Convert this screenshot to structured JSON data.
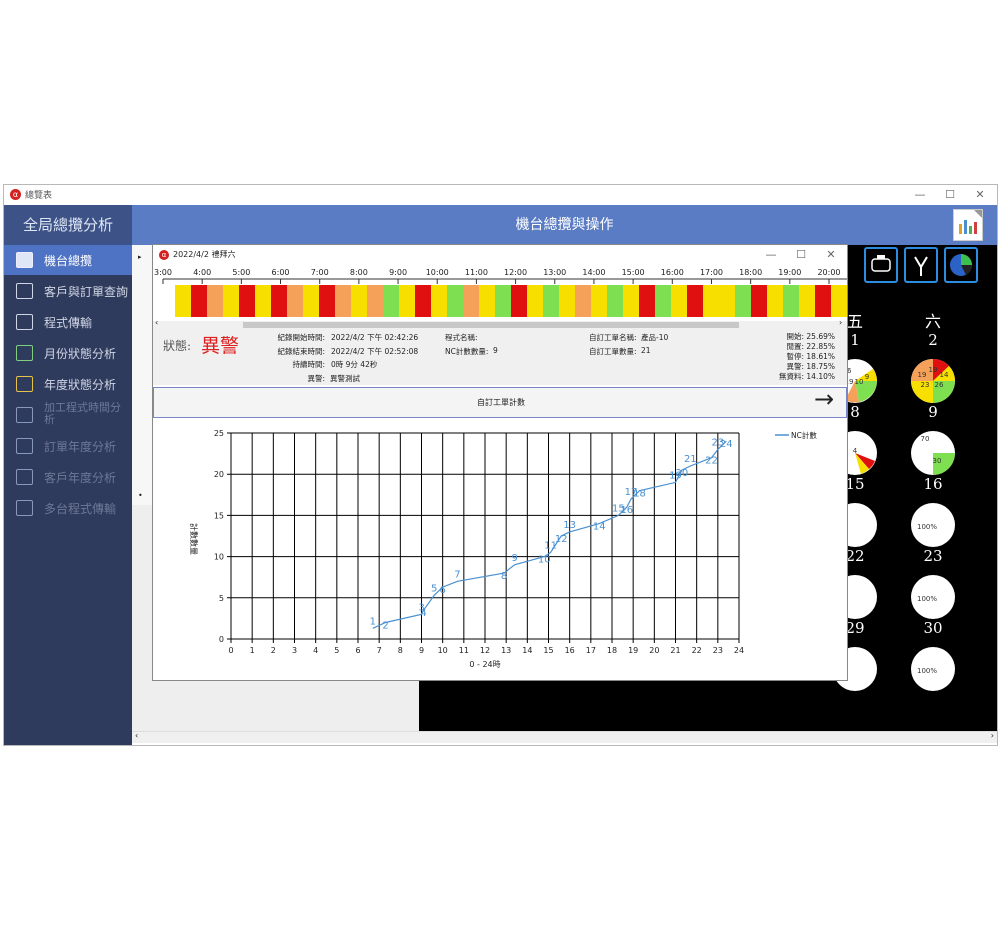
{
  "app": {
    "title": "總覽表",
    "min": "—",
    "max": "☐",
    "close": "✕"
  },
  "sidebar": {
    "header": "全局總攬分析",
    "items": [
      {
        "label": "機台總攬",
        "icon": "machine-overview-icon",
        "state": "active"
      },
      {
        "label": "客戶與訂單查詢",
        "icon": "order-search-icon",
        "state": "normal"
      },
      {
        "label": "程式傳輸",
        "icon": "program-transfer-icon",
        "state": "normal"
      },
      {
        "label": "月份狀態分析",
        "icon": "monthly-chart-icon",
        "state": "normal"
      },
      {
        "label": "年度狀態分析",
        "icon": "yearly-chart-icon",
        "state": "normal"
      },
      {
        "label": "加工程式時間分析",
        "icon": "program-time-icon",
        "state": "dim"
      },
      {
        "label": "訂單年度分析",
        "icon": "order-year-icon",
        "state": "dim"
      },
      {
        "label": "客戶年度分析",
        "icon": "customer-year-icon",
        "state": "dim"
      },
      {
        "label": "多台程式傳輸",
        "icon": "multi-transfer-icon",
        "state": "dim"
      }
    ]
  },
  "main_header": "機台總攬與操作",
  "calendar": {
    "day_headers": [
      "五",
      "六"
    ],
    "cells": [
      {
        "day": "1",
        "labels": [
          "46",
          "9",
          "19",
          "10"
        ]
      },
      {
        "day": "2",
        "labels": [
          "19",
          "19",
          "14",
          "23",
          "26"
        ]
      },
      {
        "day": "8",
        "labels": [
          "4"
        ]
      },
      {
        "day": "9",
        "labels": [
          "70",
          "30"
        ]
      },
      {
        "day": "15",
        "labels": []
      },
      {
        "day": "16",
        "labels": [
          "100%"
        ]
      },
      {
        "day": "22",
        "labels": []
      },
      {
        "day": "23",
        "labels": [
          "100%"
        ]
      },
      {
        "day": "29",
        "labels": []
      },
      {
        "day": "30",
        "labels": [
          "100%"
        ]
      }
    ],
    "colors": {
      "yellow": "#f7e000",
      "orange": "#f6a15a",
      "red": "#e01010",
      "green": "#7ee050"
    }
  },
  "popup": {
    "title": "2022/4/2  禮拜六",
    "timeline_hours": [
      "3:00",
      "4:00",
      "5:00",
      "6:00",
      "7:00",
      "8:00",
      "9:00",
      "10:00",
      "11:00",
      "12:00",
      "13:00",
      "14:00",
      "15:00",
      "16:00",
      "17:00",
      "18:00",
      "19:00",
      "20:00"
    ],
    "timeline_segments": [
      "#f7e000",
      "#e01010",
      "#f6a15a",
      "#f7e000",
      "#e01010",
      "#f7e000",
      "#e01010",
      "#f6a15a",
      "#f7e000",
      "#e01010",
      "#f6a15a",
      "#f7e000",
      "#f6a15a",
      "#7ee050",
      "#f7e000",
      "#e01010",
      "#f7e000",
      "#7ee050",
      "#f6a15a",
      "#f7e000",
      "#7ee050",
      "#e01010",
      "#f7e000",
      "#7ee050",
      "#f7e000",
      "#f6a15a",
      "#f7e000",
      "#7ee050",
      "#f7e000",
      "#e01010",
      "#7ee050",
      "#f7e000",
      "#e01010",
      "#f7e000",
      "#f7e000",
      "#7ee050",
      "#e01010",
      "#f7e000",
      "#7ee050",
      "#f7e000",
      "#e01010",
      "#f7e000"
    ],
    "status_label": "狀態:",
    "status_value": "異警",
    "info": {
      "start_label": "紀錄開始時間:",
      "start_value": "2022/4/2 下午 02:42:26",
      "end_label": "紀錄結束時間:",
      "end_value": "2022/4/2 下午 02:52:08",
      "duration_label": "持續時間:",
      "duration_value": "0時 9分 42秒",
      "alarm_label": "異警:",
      "alarm_value": "異警測試",
      "program_label": "程式名稱:",
      "program_value": "",
      "nc_label": "NC計數數量:",
      "nc_value": "9",
      "wo_label": "自訂工單名稱:",
      "wo_value": "產品-10",
      "wo_count_label": "自訂工單數量:",
      "wo_count_value": "21",
      "pct": [
        "開始: 25.69%",
        "閒置: 22.85%",
        "暫停: 18.61%",
        "異警: 18.75%",
        "無資料: 14.10%"
      ]
    },
    "section_title": "自訂工單計數",
    "arrow": "→"
  },
  "chart_data": {
    "type": "line",
    "xlabel": "0 - 24時",
    "ylabel": "計數數量",
    "xlim": [
      0,
      24
    ],
    "ylim": [
      0,
      25
    ],
    "xticks": [
      0,
      1,
      2,
      3,
      4,
      5,
      6,
      7,
      8,
      9,
      10,
      11,
      12,
      13,
      14,
      15,
      16,
      17,
      18,
      19,
      20,
      21,
      22,
      23,
      24
    ],
    "yticks": [
      0,
      5,
      10,
      15,
      20,
      25
    ],
    "grid": true,
    "legend": "top-right",
    "series": [
      {
        "name": "NC計數",
        "color": "#4a90d0",
        "points": [
          {
            "x": 6.7,
            "y": 1.3,
            "label": "1"
          },
          {
            "x": 7.3,
            "y": 2.0,
            "label": "2"
          },
          {
            "x": 9.0,
            "y": 3.0,
            "label": "3"
          },
          {
            "x": 9.1,
            "y": 3.5,
            "label": "4"
          },
          {
            "x": 9.6,
            "y": 5.3,
            "label": "5"
          },
          {
            "x": 10.0,
            "y": 6.3,
            "label": "6"
          },
          {
            "x": 10.7,
            "y": 7.0,
            "label": "7"
          },
          {
            "x": 12.9,
            "y": 8.0,
            "label": "8"
          },
          {
            "x": 13.4,
            "y": 9.0,
            "label": "9"
          },
          {
            "x": 14.8,
            "y": 10.0,
            "label": "10"
          },
          {
            "x": 15.1,
            "y": 10.5,
            "label": "11"
          },
          {
            "x": 15.6,
            "y": 12.5,
            "label": "12"
          },
          {
            "x": 16.0,
            "y": 13.0,
            "label": "13"
          },
          {
            "x": 17.4,
            "y": 14.0,
            "label": "14"
          },
          {
            "x": 18.3,
            "y": 15.0,
            "label": "15"
          },
          {
            "x": 18.7,
            "y": 16.0,
            "label": "16"
          },
          {
            "x": 18.9,
            "y": 17.0,
            "label": "17"
          },
          {
            "x": 19.3,
            "y": 18.0,
            "label": "18"
          },
          {
            "x": 21.0,
            "y": 19.0,
            "label": "19"
          },
          {
            "x": 21.3,
            "y": 20.5,
            "label": "20"
          },
          {
            "x": 21.7,
            "y": 21.0,
            "label": "21"
          },
          {
            "x": 22.7,
            "y": 22.0,
            "label": "22"
          },
          {
            "x": 23.0,
            "y": 23.0,
            "label": "23"
          },
          {
            "x": 23.4,
            "y": 24.0,
            "label": "24"
          }
        ]
      }
    ]
  }
}
